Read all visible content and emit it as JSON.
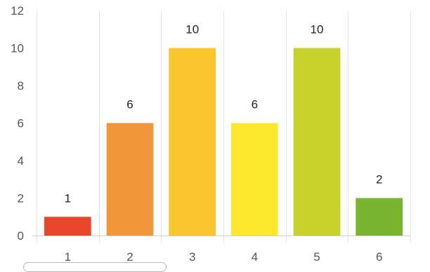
{
  "chart_data": {
    "type": "bar",
    "categories": [
      "1",
      "2",
      "3",
      "4",
      "5",
      "6"
    ],
    "values": [
      1,
      6,
      10,
      6,
      10,
      2
    ],
    "data_labels": [
      "1",
      "6",
      "10",
      "6",
      "10",
      "2"
    ],
    "colors": [
      "#e8452a",
      "#f2963a",
      "#fbc52e",
      "#fde82d",
      "#c8d22a",
      "#7ab530"
    ],
    "y_ticks": [
      "0",
      "2",
      "4",
      "6",
      "8",
      "10",
      "12"
    ],
    "ylim": [
      0,
      12
    ],
    "grid": "vertical",
    "title": "",
    "xlabel": "",
    "ylabel": ""
  }
}
